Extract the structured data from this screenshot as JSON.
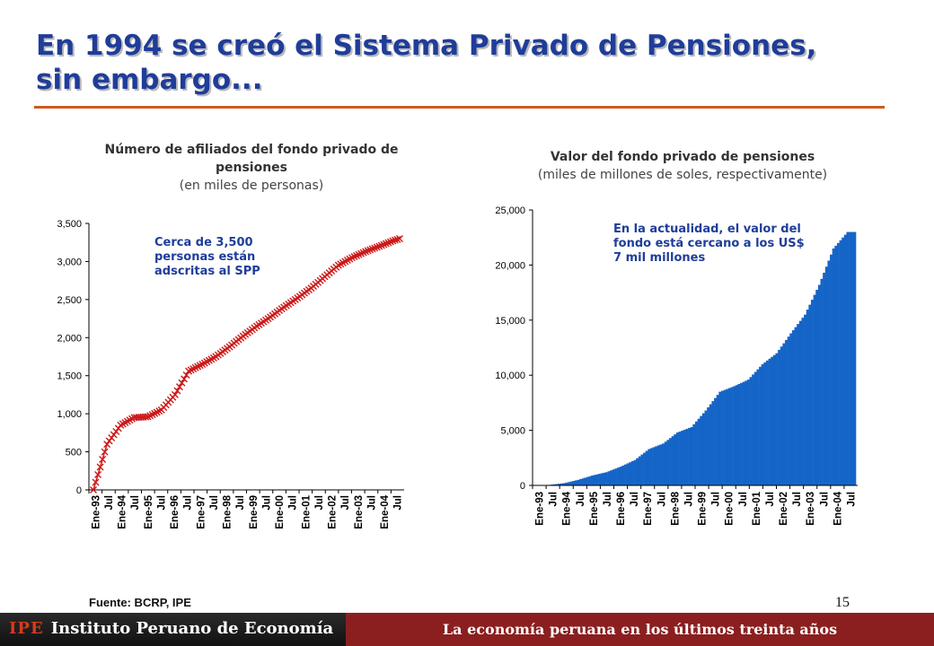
{
  "slide": {
    "title_line1": "En 1994 se creó el Sistema Privado de Pensiones,",
    "title_line2": "sin embargo...",
    "source": "Fuente: BCRP, IPE",
    "page_number": "15",
    "footer_logo": "IPE",
    "footer_institute": "Instituto Peruano de Economía",
    "footer_tagline": "La economía peruana en los últimos treinta años",
    "colors": {
      "title": "#1f3d99",
      "rule": "#cc5a1e",
      "line": "#cc1a1a",
      "bars": "#1565c8",
      "footer_red": "#8b1f1f"
    }
  },
  "chart_data": [
    {
      "type": "line",
      "title": "Número de afiliados del fondo privado de pensiones",
      "subtitle": "(en miles de personas)",
      "annotation": "Cerca de 3,500 personas están adscritas al SPP",
      "x_ticks": [
        "Ene-93",
        "Jul",
        "Ene-94",
        "Jul",
        "Ene-95",
        "Jul",
        "Ene-96",
        "Jul",
        "Ene-97",
        "Jul",
        "Ene-98",
        "Jul",
        "Ene-99",
        "Jul",
        "Ene-00",
        "Jul",
        "Ene-01",
        "Jul",
        "Ene-02",
        "Jul",
        "Ene-03",
        "Jul",
        "Ene-04",
        "Jul"
      ],
      "y_ticks": [
        "0",
        "500",
        "1,000",
        "1,500",
        "2,000",
        "2,500",
        "3,000",
        "3,500"
      ],
      "ylim": [
        0,
        3500
      ],
      "marker": "x",
      "x_start": "1993-07",
      "x_end": "2004-10",
      "frequency": "monthly",
      "anchors": [
        {
          "date": "1993-07",
          "value": 0
        },
        {
          "date": "1993-10",
          "value": 300
        },
        {
          "date": "1994-01",
          "value": 600
        },
        {
          "date": "1994-07",
          "value": 850
        },
        {
          "date": "1995-01",
          "value": 950
        },
        {
          "date": "1995-07",
          "value": 960
        },
        {
          "date": "1996-01",
          "value": 1050
        },
        {
          "date": "1996-07",
          "value": 1250
        },
        {
          "date": "1997-01",
          "value": 1560
        },
        {
          "date": "1997-07",
          "value": 1650
        },
        {
          "date": "1998-01",
          "value": 1750
        },
        {
          "date": "1998-07",
          "value": 1880
        },
        {
          "date": "1999-01",
          "value": 2020
        },
        {
          "date": "1999-07",
          "value": 2150
        },
        {
          "date": "2000-01",
          "value": 2270
        },
        {
          "date": "2000-07",
          "value": 2400
        },
        {
          "date": "2001-01",
          "value": 2520
        },
        {
          "date": "2001-07",
          "value": 2650
        },
        {
          "date": "2002-01",
          "value": 2800
        },
        {
          "date": "2002-07",
          "value": 2950
        },
        {
          "date": "2003-01",
          "value": 3050
        },
        {
          "date": "2003-07",
          "value": 3130
        },
        {
          "date": "2004-01",
          "value": 3200
        },
        {
          "date": "2004-07",
          "value": 3270
        },
        {
          "date": "2004-10",
          "value": 3300
        }
      ]
    },
    {
      "type": "bar",
      "title": "Valor del fondo privado de pensiones",
      "subtitle": "(miles de millones de soles, respectivamente)",
      "annotation": "En la actualidad, el valor del fondo está cercano a los US$ 7 mil millones",
      "x_ticks": [
        "Ene-93",
        "Jul",
        "Ene-94",
        "Jul",
        "Ene-95",
        "Jul",
        "Ene-96",
        "Jul",
        "Ene-97",
        "Jul",
        "Ene-98",
        "Jul",
        "Ene-99",
        "Jul",
        "Ene-00",
        "Jul",
        "Ene-01",
        "Jul",
        "Ene-02",
        "Jul",
        "Ene-03",
        "Jul",
        "Ene-04",
        "Jul"
      ],
      "y_ticks": [
        "0",
        "5,000",
        "10,000",
        "15,000",
        "20,000",
        "25,000"
      ],
      "ylim": [
        0,
        25000
      ],
      "x_start": "1993-07",
      "x_end": "2004-10",
      "frequency": "monthly",
      "anchors": [
        {
          "date": "1993-07",
          "value": 0
        },
        {
          "date": "1994-01",
          "value": 50
        },
        {
          "date": "1994-07",
          "value": 200
        },
        {
          "date": "1995-01",
          "value": 500
        },
        {
          "date": "1995-07",
          "value": 900
        },
        {
          "date": "1996-01",
          "value": 1200
        },
        {
          "date": "1996-07",
          "value": 1700
        },
        {
          "date": "1997-01",
          "value": 2300
        },
        {
          "date": "1997-07",
          "value": 3300
        },
        {
          "date": "1998-01",
          "value": 3800
        },
        {
          "date": "1998-07",
          "value": 4800
        },
        {
          "date": "1999-01",
          "value": 5300
        },
        {
          "date": "1999-07",
          "value": 6800
        },
        {
          "date": "2000-01",
          "value": 8500
        },
        {
          "date": "2000-07",
          "value": 9000
        },
        {
          "date": "2001-01",
          "value": 9600
        },
        {
          "date": "2001-07",
          "value": 11000
        },
        {
          "date": "2002-01",
          "value": 12000
        },
        {
          "date": "2002-07",
          "value": 13800
        },
        {
          "date": "2003-01",
          "value": 15500
        },
        {
          "date": "2003-07",
          "value": 18200
        },
        {
          "date": "2004-01",
          "value": 21500
        },
        {
          "date": "2004-07",
          "value": 23000
        },
        {
          "date": "2004-10",
          "value": 23000
        }
      ]
    }
  ]
}
